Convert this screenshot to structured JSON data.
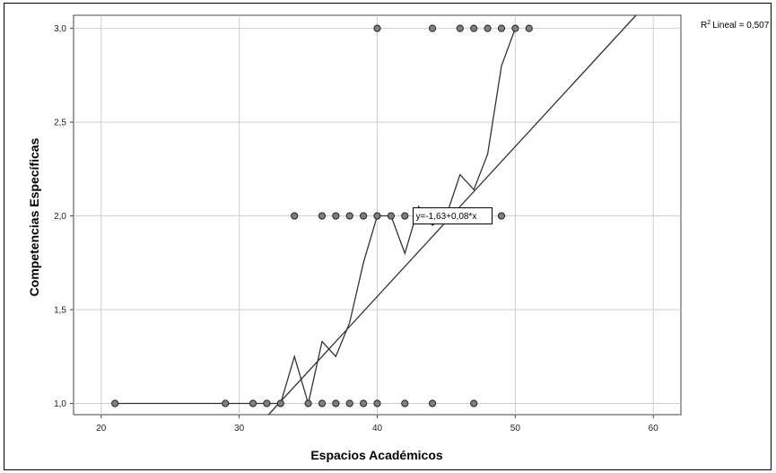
{
  "chart_data": {
    "type": "scatter",
    "title": "",
    "xlabel": "Espacios Académicos",
    "ylabel": "Competencias Específicas",
    "xlim": [
      18,
      62
    ],
    "ylim": [
      0.94,
      3.07
    ],
    "x_ticks": [
      "20",
      "30",
      "40",
      "50",
      "60"
    ],
    "y_ticks": [
      "1,0",
      "1,5",
      "2,0",
      "2,5",
      "3,0"
    ],
    "x_tick_values": [
      20,
      30,
      40,
      50,
      60
    ],
    "y_tick_values": [
      1.0,
      1.5,
      2.0,
      2.5,
      3.0
    ],
    "grid": true,
    "points": [
      {
        "x": 21,
        "y": 1.0
      },
      {
        "x": 29,
        "y": 1.0
      },
      {
        "x": 31,
        "y": 1.0
      },
      {
        "x": 32,
        "y": 1.0
      },
      {
        "x": 33,
        "y": 1.0
      },
      {
        "x": 35,
        "y": 1.0
      },
      {
        "x": 36,
        "y": 1.0
      },
      {
        "x": 37,
        "y": 1.0
      },
      {
        "x": 38,
        "y": 1.0
      },
      {
        "x": 39,
        "y": 1.0
      },
      {
        "x": 40,
        "y": 1.0
      },
      {
        "x": 42,
        "y": 1.0
      },
      {
        "x": 44,
        "y": 1.0
      },
      {
        "x": 47,
        "y": 1.0
      },
      {
        "x": 34,
        "y": 2.0
      },
      {
        "x": 36,
        "y": 2.0
      },
      {
        "x": 37,
        "y": 2.0
      },
      {
        "x": 38,
        "y": 2.0
      },
      {
        "x": 39,
        "y": 2.0
      },
      {
        "x": 40,
        "y": 2.0
      },
      {
        "x": 41,
        "y": 2.0
      },
      {
        "x": 42,
        "y": 2.0
      },
      {
        "x": 47,
        "y": 2.0
      },
      {
        "x": 48,
        "y": 2.0
      },
      {
        "x": 49,
        "y": 2.0
      },
      {
        "x": 40,
        "y": 3.0
      },
      {
        "x": 44,
        "y": 3.0
      },
      {
        "x": 46,
        "y": 3.0
      },
      {
        "x": 47,
        "y": 3.0
      },
      {
        "x": 48,
        "y": 3.0
      },
      {
        "x": 49,
        "y": 3.0
      },
      {
        "x": 50,
        "y": 3.0
      },
      {
        "x": 51,
        "y": 3.0
      }
    ],
    "loess_line": [
      {
        "x": 21,
        "y": 1.0
      },
      {
        "x": 29,
        "y": 1.0
      },
      {
        "x": 31,
        "y": 1.0
      },
      {
        "x": 32,
        "y": 1.0
      },
      {
        "x": 33,
        "y": 1.0
      },
      {
        "x": 34,
        "y": 1.25
      },
      {
        "x": 35,
        "y": 1.0
      },
      {
        "x": 36,
        "y": 1.33
      },
      {
        "x": 37,
        "y": 1.25
      },
      {
        "x": 38,
        "y": 1.43
      },
      {
        "x": 39,
        "y": 1.75
      },
      {
        "x": 40,
        "y": 2.0
      },
      {
        "x": 41,
        "y": 2.0
      },
      {
        "x": 42,
        "y": 1.8
      },
      {
        "x": 43,
        "y": 2.05
      },
      {
        "x": 44,
        "y": 1.95
      },
      {
        "x": 45,
        "y": 2.0
      },
      {
        "x": 46,
        "y": 2.22
      },
      {
        "x": 47,
        "y": 2.14
      },
      {
        "x": 48,
        "y": 2.33
      },
      {
        "x": 49,
        "y": 2.8
      },
      {
        "x": 50,
        "y": 3.0
      }
    ],
    "fit": {
      "type": "linear",
      "intercept": -1.63,
      "slope": 0.08,
      "equation_label": "y=-1,63+0,08*x",
      "r2_label": "Lineal = 0,507",
      "r2_prefix": "R",
      "r2_superscript": "2"
    },
    "colors": {
      "point_fill": "#7f7f7f",
      "point_stroke": "#222222",
      "line": "#333333",
      "grid": "#cfcfcf"
    }
  }
}
